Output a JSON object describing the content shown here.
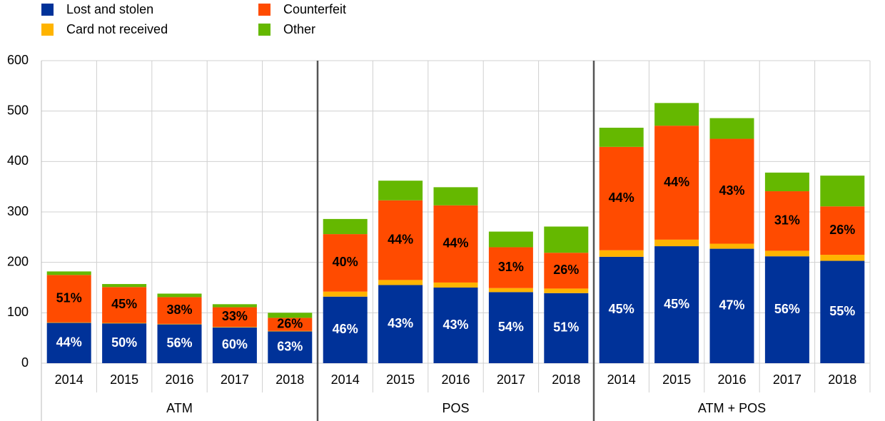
{
  "chart_data": {
    "type": "stacked_bar",
    "groups": [
      {
        "name": "ATM",
        "categories": [
          "2014",
          "2015",
          "2016",
          "2017",
          "2018"
        ]
      },
      {
        "name": "POS",
        "categories": [
          "2014",
          "2015",
          "2016",
          "2017",
          "2018"
        ]
      },
      {
        "name": "ATM + POS",
        "categories": [
          "2014",
          "2015",
          "2016",
          "2017",
          "2018"
        ]
      }
    ],
    "series": [
      {
        "name": "Lost and stolen",
        "color": "#003299",
        "label_color": "#ffffff",
        "values": [
          80,
          79,
          77,
          71,
          63,
          132,
          155,
          150,
          141,
          139,
          211,
          232,
          227,
          212,
          203
        ],
        "labels": [
          "44%",
          "50%",
          "56%",
          "60%",
          "63%",
          "46%",
          "43%",
          "43%",
          "54%",
          "51%",
          "45%",
          "45%",
          "47%",
          "56%",
          "55%"
        ]
      },
      {
        "name": "Card not received",
        "color": "#ffb400",
        "values": [
          1,
          1,
          1,
          1,
          1,
          10,
          10,
          10,
          8,
          9,
          13,
          13,
          10,
          11,
          12
        ]
      },
      {
        "name": "Counterfeit",
        "color": "#ff4b00",
        "label_color": "#000000",
        "values": [
          94,
          71,
          53,
          39,
          26,
          114,
          158,
          153,
          81,
          71,
          205,
          226,
          208,
          118,
          96
        ],
        "labels": [
          "51%",
          "45%",
          "38%",
          "33%",
          "26%",
          "40%",
          "44%",
          "44%",
          "31%",
          "26%",
          "44%",
          "44%",
          "43%",
          "31%",
          "26%"
        ]
      },
      {
        "name": "Other",
        "color": "#65b800",
        "values": [
          7,
          6,
          7,
          6,
          10,
          30,
          39,
          36,
          31,
          52,
          38,
          45,
          41,
          37,
          61
        ]
      }
    ],
    "ylim": [
      0,
      600
    ],
    "yticks": [
      0,
      100,
      200,
      300,
      400,
      500,
      600
    ],
    "grid": true,
    "legend": "top-left"
  }
}
